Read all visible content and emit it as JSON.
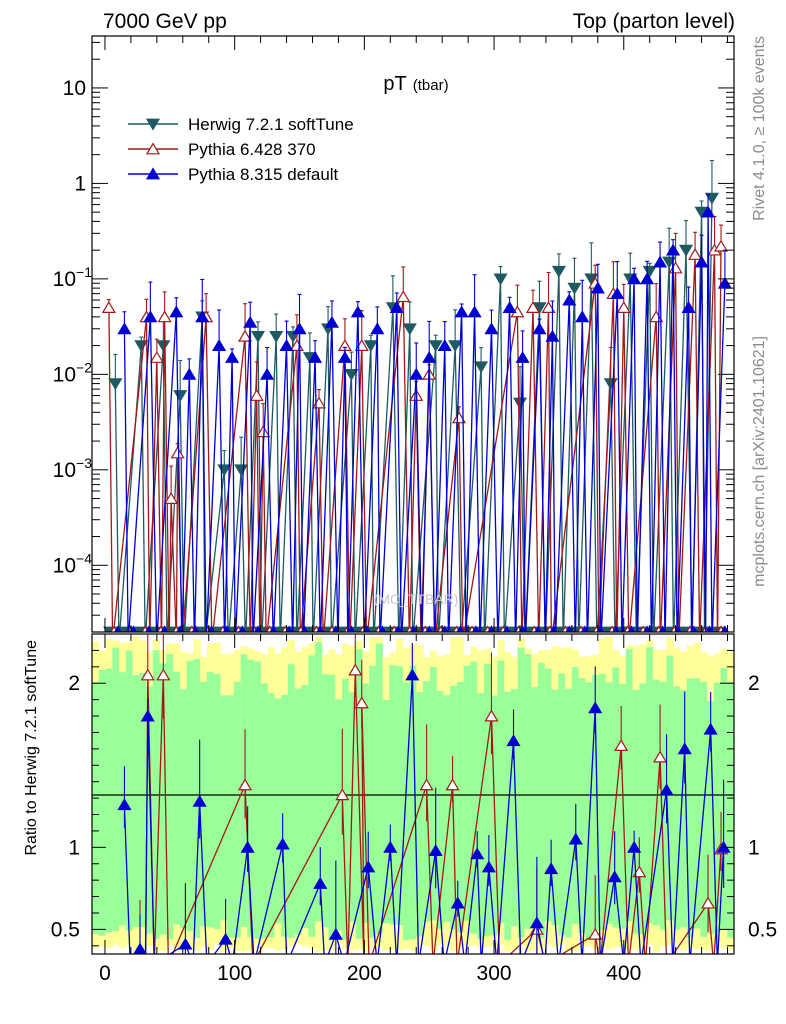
{
  "header": {
    "left": "7000 GeV pp",
    "right": "Top (parton level)"
  },
  "side_texts": {
    "rivet": "Rivet 4.1.0, ≥ 100k events",
    "mcplots": "mcplots.cern.ch [arXiv:2401.10621]"
  },
  "chart_data": [
    {
      "panel": "main",
      "type": "line",
      "title": "pT",
      "title_sub": "(tbar)",
      "watermark": "(MC_TTBAR)",
      "xlabel": "",
      "ylabel": "",
      "yscale": "log",
      "xlim": [
        -10,
        485
      ],
      "ylim": [
        2e-05,
        35
      ],
      "y_ticks": [
        {
          "value": 10,
          "label": "10"
        },
        {
          "value": 1,
          "label": "1"
        },
        {
          "value": 0.1,
          "label": "10",
          "exp": "−1"
        },
        {
          "value": 0.01,
          "label": "10",
          "exp": "−2"
        },
        {
          "value": 0.001,
          "label": "10",
          "exp": "−3"
        },
        {
          "value": 0.0001,
          "label": "10",
          "exp": "−4"
        }
      ],
      "legend_position": "top-left",
      "series": [
        {
          "name": "Herwig 7.2.1 softTune",
          "color": "#1f5a63",
          "marker": "triangle-down-filled",
          "points": [
            [
              8,
              0.008
            ],
            [
              28,
              0.02
            ],
            [
              45,
              0.02
            ],
            [
              58,
              0.006
            ],
            [
              75,
              0.04
            ],
            [
              92,
              0.001
            ],
            [
              105,
              0.001
            ],
            [
              118,
              0.025
            ],
            [
              132,
              0.025
            ],
            [
              145,
              0.025
            ],
            [
              158,
              0.015
            ],
            [
              172,
              0.03
            ],
            [
              190,
              0.01
            ],
            [
              205,
              0.02
            ],
            [
              222,
              0.05
            ],
            [
              235,
              0.03
            ],
            [
              255,
              0.02
            ],
            [
              270,
              0.02
            ],
            [
              290,
              0.012
            ],
            [
              305,
              0.1
            ],
            [
              320,
              0.005
            ],
            [
              335,
              0.05
            ],
            [
              350,
              0.12
            ],
            [
              362,
              0.08
            ],
            [
              375,
              0.1
            ],
            [
              390,
              0.008
            ],
            [
              405,
              0.1
            ],
            [
              420,
              0.12
            ],
            [
              435,
              0.15
            ],
            [
              448,
              0.2
            ],
            [
              460,
              0.5
            ],
            [
              468,
              0.7
            ]
          ]
        },
        {
          "name": "Pythia 6.428 370",
          "color": "#a01a1a",
          "marker": "triangle-up-open",
          "points": [
            [
              3,
              0.05
            ],
            [
              32,
              0.04
            ],
            [
              40,
              0.015
            ],
            [
              46,
              0.04
            ],
            [
              51,
              0.0005
            ],
            [
              56,
              0.0015
            ],
            [
              78,
              0.04
            ],
            [
              108,
              0.025
            ],
            [
              117,
              0.006
            ],
            [
              122,
              0.0025
            ],
            [
              148,
              0.02
            ],
            [
              165,
              0.005
            ],
            [
              185,
              0.02
            ],
            [
              198,
              0.02
            ],
            [
              230,
              0.065
            ],
            [
              240,
              0.006
            ],
            [
              250,
              0.01
            ],
            [
              273,
              0.0035
            ],
            [
              318,
              0.045
            ],
            [
              330,
              0.05
            ],
            [
              342,
              0.05
            ],
            [
              378,
              0.09
            ],
            [
              392,
              0.07
            ],
            [
              400,
              0.05
            ],
            [
              425,
              0.04
            ],
            [
              440,
              0.13
            ],
            [
              455,
              0.18
            ],
            [
              470,
              0.2
            ],
            [
              475,
              0.22
            ]
          ]
        },
        {
          "name": "Pythia 8.315 default",
          "color": "#0000d2",
          "marker": "triangle-up-filled",
          "points": [
            [
              15,
              0.03
            ],
            [
              35,
              0.04
            ],
            [
              55,
              0.045
            ],
            [
              65,
              0.01
            ],
            [
              75,
              0.04
            ],
            [
              88,
              0.02
            ],
            [
              98,
              0.015
            ],
            [
              112,
              0.035
            ],
            [
              125,
              0.01
            ],
            [
              140,
              0.02
            ],
            [
              150,
              0.03
            ],
            [
              162,
              0.015
            ],
            [
              175,
              0.035
            ],
            [
              185,
              0.015
            ],
            [
              195,
              0.045
            ],
            [
              210,
              0.03
            ],
            [
              225,
              0.05
            ],
            [
              240,
              0.01
            ],
            [
              250,
              0.015
            ],
            [
              262,
              0.02
            ],
            [
              275,
              0.045
            ],
            [
              285,
              0.045
            ],
            [
              298,
              0.03
            ],
            [
              312,
              0.05
            ],
            [
              322,
              0.015
            ],
            [
              335,
              0.03
            ],
            [
              345,
              0.025
            ],
            [
              358,
              0.06
            ],
            [
              368,
              0.04
            ],
            [
              380,
              0.08
            ],
            [
              395,
              0.07
            ],
            [
              408,
              0.1
            ],
            [
              418,
              0.1
            ],
            [
              428,
              0.15
            ],
            [
              438,
              0.2
            ],
            [
              450,
              0.05
            ],
            [
              460,
              0.15
            ],
            [
              465,
              0.5
            ],
            [
              478,
              0.09
            ]
          ]
        }
      ]
    },
    {
      "panel": "ratio",
      "type": "line",
      "xlabel": "",
      "ylabel": "Ratio to Herwig 7.2.1 softTune",
      "xlim": [
        -10,
        485
      ],
      "ylim": [
        0.35,
        2.3
      ],
      "x_ticks": [
        0,
        100,
        200,
        300,
        400
      ],
      "y_ticks": [
        0.5,
        1,
        2
      ],
      "reference_line": 1,
      "bands": "yellow/green uncertainty bands around 1",
      "series": [
        {
          "name": "Pythia 6.428 370",
          "color": "#a01a1a",
          "marker": "triangle-up-open",
          "points": [
            [
              27,
              0.35
            ],
            [
              33,
              2.05
            ],
            [
              45,
              2.05
            ],
            [
              108,
              1.38
            ],
            [
              183,
              1.32
            ],
            [
              193,
              2.08
            ],
            [
              198,
              1.88
            ],
            [
              248,
              1.38
            ],
            [
              268,
              1.38
            ],
            [
              298,
              1.8
            ],
            [
              333,
              0.5
            ],
            [
              378,
              0.47
            ],
            [
              398,
              1.62
            ],
            [
              412,
              0.85
            ],
            [
              428,
              1.55
            ],
            [
              465,
              0.66
            ],
            [
              475,
              0.99
            ]
          ]
        },
        {
          "name": "Pythia 8.315 default",
          "color": "#0000d2",
          "marker": "triangle-up-filled",
          "points": [
            [
              15,
              1.26
            ],
            [
              27,
              0.38
            ],
            [
              33,
              1.8
            ],
            [
              62,
              0.41
            ],
            [
              73,
              1.28
            ],
            [
              93,
              0.44
            ],
            [
              110,
              1.0
            ],
            [
              137,
              1.02
            ],
            [
              166,
              0.78
            ],
            [
              178,
              0.47
            ],
            [
              203,
              0.88
            ],
            [
              220,
              1.0
            ],
            [
              237,
              2.05
            ],
            [
              255,
              0.98
            ],
            [
              272,
              0.66
            ],
            [
              287,
              0.96
            ],
            [
              296,
              0.88
            ],
            [
              315,
              1.65
            ],
            [
              333,
              0.54
            ],
            [
              344,
              0.87
            ],
            [
              363,
              1.05
            ],
            [
              378,
              1.85
            ],
            [
              393,
              0.82
            ],
            [
              408,
              1.0
            ],
            [
              433,
              1.35
            ],
            [
              447,
              1.6
            ],
            [
              467,
              1.72
            ],
            [
              477,
              1.0
            ]
          ]
        }
      ]
    }
  ]
}
